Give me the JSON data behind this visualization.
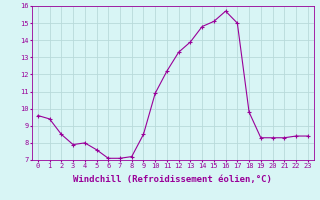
{
  "x": [
    0,
    1,
    2,
    3,
    4,
    5,
    6,
    7,
    8,
    9,
    10,
    11,
    12,
    13,
    14,
    15,
    16,
    17,
    18,
    19,
    20,
    21,
    22,
    23
  ],
  "y": [
    9.6,
    9.4,
    8.5,
    7.9,
    8.0,
    7.6,
    7.1,
    7.1,
    7.2,
    8.5,
    10.9,
    12.2,
    13.3,
    13.9,
    14.8,
    15.1,
    15.7,
    15.0,
    9.8,
    8.3,
    8.3,
    8.3,
    8.4,
    8.4
  ],
  "line_color": "#990099",
  "marker": "+",
  "marker_size": 3,
  "bg_color": "#d8f5f5",
  "grid_color": "#b8dada",
  "xlabel": "Windchill (Refroidissement éolien,°C)",
  "ylim": [
    7,
    16
  ],
  "xlim": [
    -0.5,
    23.5
  ],
  "yticks": [
    7,
    8,
    9,
    10,
    11,
    12,
    13,
    14,
    15,
    16
  ],
  "xticks": [
    0,
    1,
    2,
    3,
    4,
    5,
    6,
    7,
    8,
    9,
    10,
    11,
    12,
    13,
    14,
    15,
    16,
    17,
    18,
    19,
    20,
    21,
    22,
    23
  ],
  "tick_fontsize": 5,
  "xlabel_fontsize": 6.5,
  "label_color": "#990099"
}
